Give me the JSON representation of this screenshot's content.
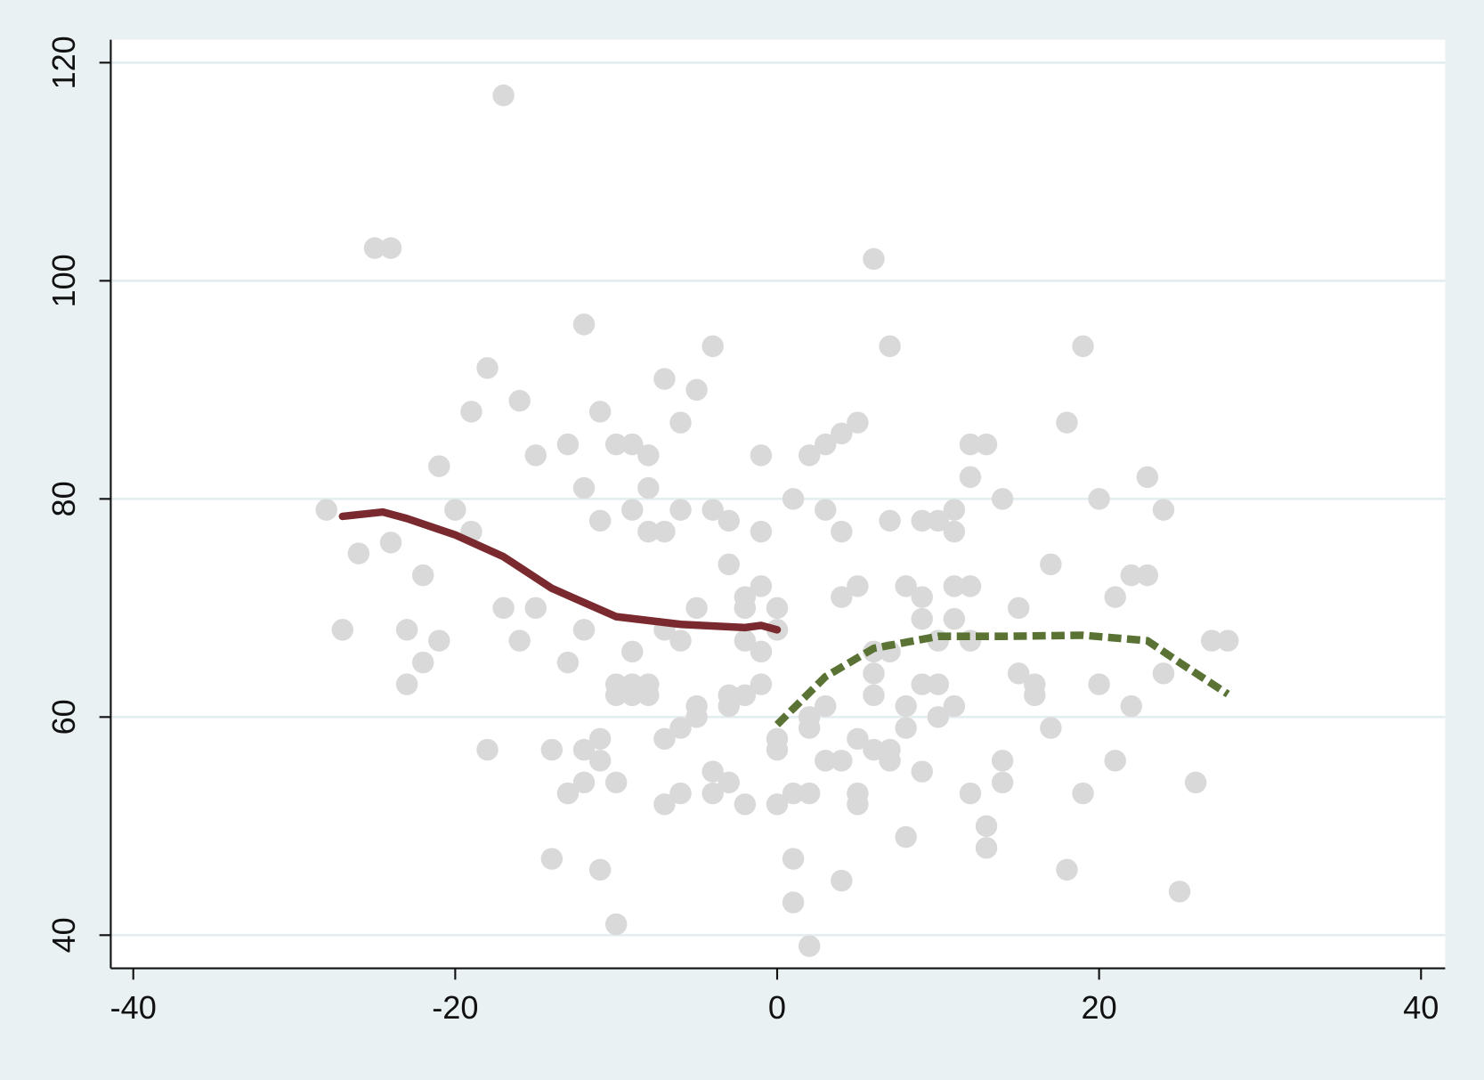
{
  "chart_data": {
    "type": "scatter",
    "xlim": [
      -41.4,
      41.5
    ],
    "ylim": [
      36.96,
      122.1
    ],
    "xticks": [
      -40,
      -20,
      0,
      20,
      40
    ],
    "yticks": [
      40,
      60,
      80,
      100,
      120
    ],
    "grid": true,
    "points": {
      "color": "#d9d9d9",
      "x": [
        -17,
        -25,
        -24,
        6,
        -12,
        -4,
        7,
        19,
        -18,
        -7,
        -5,
        -16,
        -19,
        -11,
        -6,
        5,
        18,
        4,
        -13,
        -10,
        -9,
        3,
        12,
        13,
        -15,
        -8,
        -1,
        2,
        -21,
        12,
        23,
        -12,
        -8,
        1,
        14,
        20,
        -28,
        -20,
        -9,
        -6,
        -4,
        3,
        11,
        24,
        -11,
        -3,
        7,
        9,
        10,
        -19,
        -8,
        -7,
        -1,
        4,
        11,
        -24,
        -26,
        -3,
        17,
        -22,
        22,
        23,
        -1,
        5,
        8,
        11,
        12,
        -2,
        4,
        9,
        21,
        -17,
        -15,
        -5,
        -2,
        0,
        15,
        9,
        11,
        -27,
        -23,
        -12,
        -7,
        0,
        -21,
        -16,
        -6,
        -2,
        10,
        12,
        27,
        28,
        -9,
        -1,
        6,
        7,
        -22,
        -13,
        6,
        15,
        24,
        -23,
        -10,
        -9,
        -8,
        -1,
        9,
        10,
        16,
        20,
        -10,
        -9,
        -8,
        -3,
        -2,
        6,
        16,
        -5,
        -3,
        3,
        8,
        11,
        22,
        -5,
        2,
        10,
        -6,
        2,
        8,
        17,
        -7,
        -11,
        0,
        5,
        -18,
        -14,
        -12,
        0,
        6,
        7,
        -11,
        3,
        4,
        7,
        14,
        21,
        -4,
        9,
        -12,
        -10,
        -3,
        14,
        26,
        -13,
        -6,
        -4,
        1,
        2,
        5,
        12,
        19,
        -7,
        -2,
        0,
        5,
        13,
        8,
        13,
        -14,
        1,
        -11,
        18,
        4,
        25,
        1,
        -10,
        2
      ],
      "y": [
        117,
        103,
        103,
        102,
        96,
        94,
        94,
        94,
        92,
        91,
        90,
        89,
        88,
        88,
        87,
        87,
        87,
        86,
        85,
        85,
        85,
        85,
        85,
        85,
        84,
        84,
        84,
        84,
        83,
        82,
        82,
        81,
        81,
        80,
        80,
        80,
        79,
        79,
        79,
        79,
        79,
        79,
        79,
        79,
        78,
        78,
        78,
        78,
        78,
        77,
        77,
        77,
        77,
        77,
        77,
        76,
        75,
        74,
        74,
        73,
        73,
        73,
        72,
        72,
        72,
        72,
        72,
        71,
        71,
        71,
        71,
        70,
        70,
        70,
        70,
        70,
        70,
        69,
        69,
        68,
        68,
        68,
        68,
        68,
        67,
        67,
        67,
        67,
        67,
        67,
        67,
        67,
        66,
        66,
        66,
        66,
        65,
        65,
        64,
        64,
        64,
        63,
        63,
        63,
        63,
        63,
        63,
        63,
        63,
        63,
        62,
        62,
        62,
        62,
        62,
        62,
        62,
        61,
        61,
        61,
        61,
        61,
        61,
        60,
        60,
        60,
        59,
        59,
        59,
        59,
        58,
        58,
        58,
        58,
        57,
        57,
        57,
        57,
        57,
        57,
        56,
        56,
        56,
        56,
        56,
        56,
        55,
        55,
        54,
        54,
        54,
        54,
        54,
        53,
        53,
        53,
        53,
        53,
        53,
        53,
        53,
        52,
        52,
        52,
        52,
        50,
        49,
        48,
        47,
        47,
        46,
        46,
        45,
        44,
        43,
        41,
        39
      ]
    },
    "lines": [
      {
        "color": "#7a2a2e",
        "style": "solid",
        "x": [
          -27,
          -24.5,
          -23,
          -20,
          -17,
          -14,
          -10,
          -6,
          -2,
          -1,
          0
        ],
        "y": [
          78.4,
          78.8,
          78.2,
          76.7,
          74.7,
          71.8,
          69.2,
          68.5,
          68.2,
          68.4,
          68.0
        ]
      },
      {
        "color": "#5a7335",
        "style": "dashed",
        "x": [
          0,
          3,
          6,
          10,
          14,
          19,
          23,
          25,
          28
        ],
        "y": [
          59.3,
          63.7,
          66.3,
          67.4,
          67.4,
          67.5,
          67,
          65,
          62.1
        ]
      }
    ]
  }
}
